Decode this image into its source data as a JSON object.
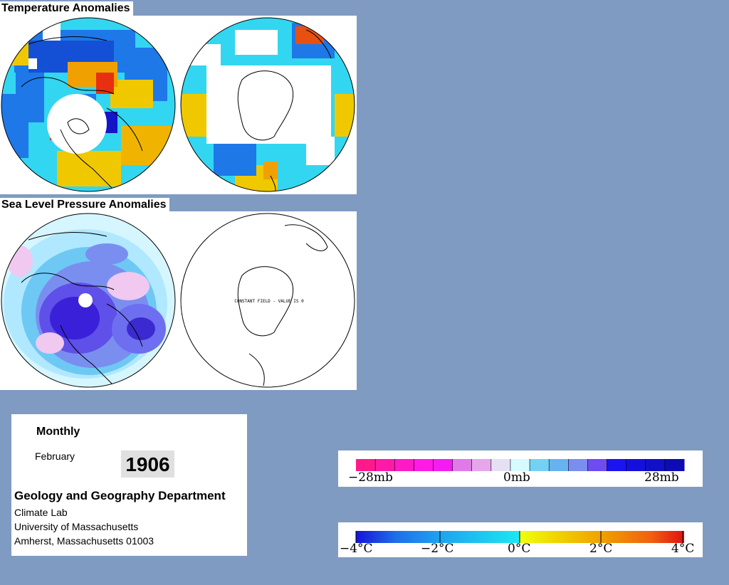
{
  "temperature": {
    "title": "Temperature Anomalies"
  },
  "pressure": {
    "title": "Sea Level Pressure Anomalies",
    "southern_annotation": "CONSTANT FIELD - VALUE IS 0"
  },
  "info": {
    "period": "Monthly",
    "month": "February",
    "year": "1906",
    "department": "Geology and Geography Department",
    "lab": "Climate Lab",
    "university": "University of Massachusetts",
    "address": "Amherst, Massachusetts 01003"
  },
  "pressure_legend": {
    "unit": "mb",
    "labels": [
      "−28mb",
      "0mb",
      "28mb"
    ],
    "colors": [
      "#ff1a8c",
      "#ff1aa8",
      "#ff1ac8",
      "#ff1ae6",
      "#f41cf0",
      "#e07ae8",
      "#e6a6ec",
      "#e6e0f4",
      "#d6faff",
      "#73d2f4",
      "#66b3f0",
      "#7a8ef0",
      "#6e4cf0",
      "#1a14f0",
      "#1410dc",
      "#1010c8",
      "#0c0cb2"
    ]
  },
  "temperature_legend": {
    "unit": "°C",
    "labels": [
      "−4°C",
      "−2°C",
      "0°C",
      "2°C",
      "4°C"
    ]
  }
}
